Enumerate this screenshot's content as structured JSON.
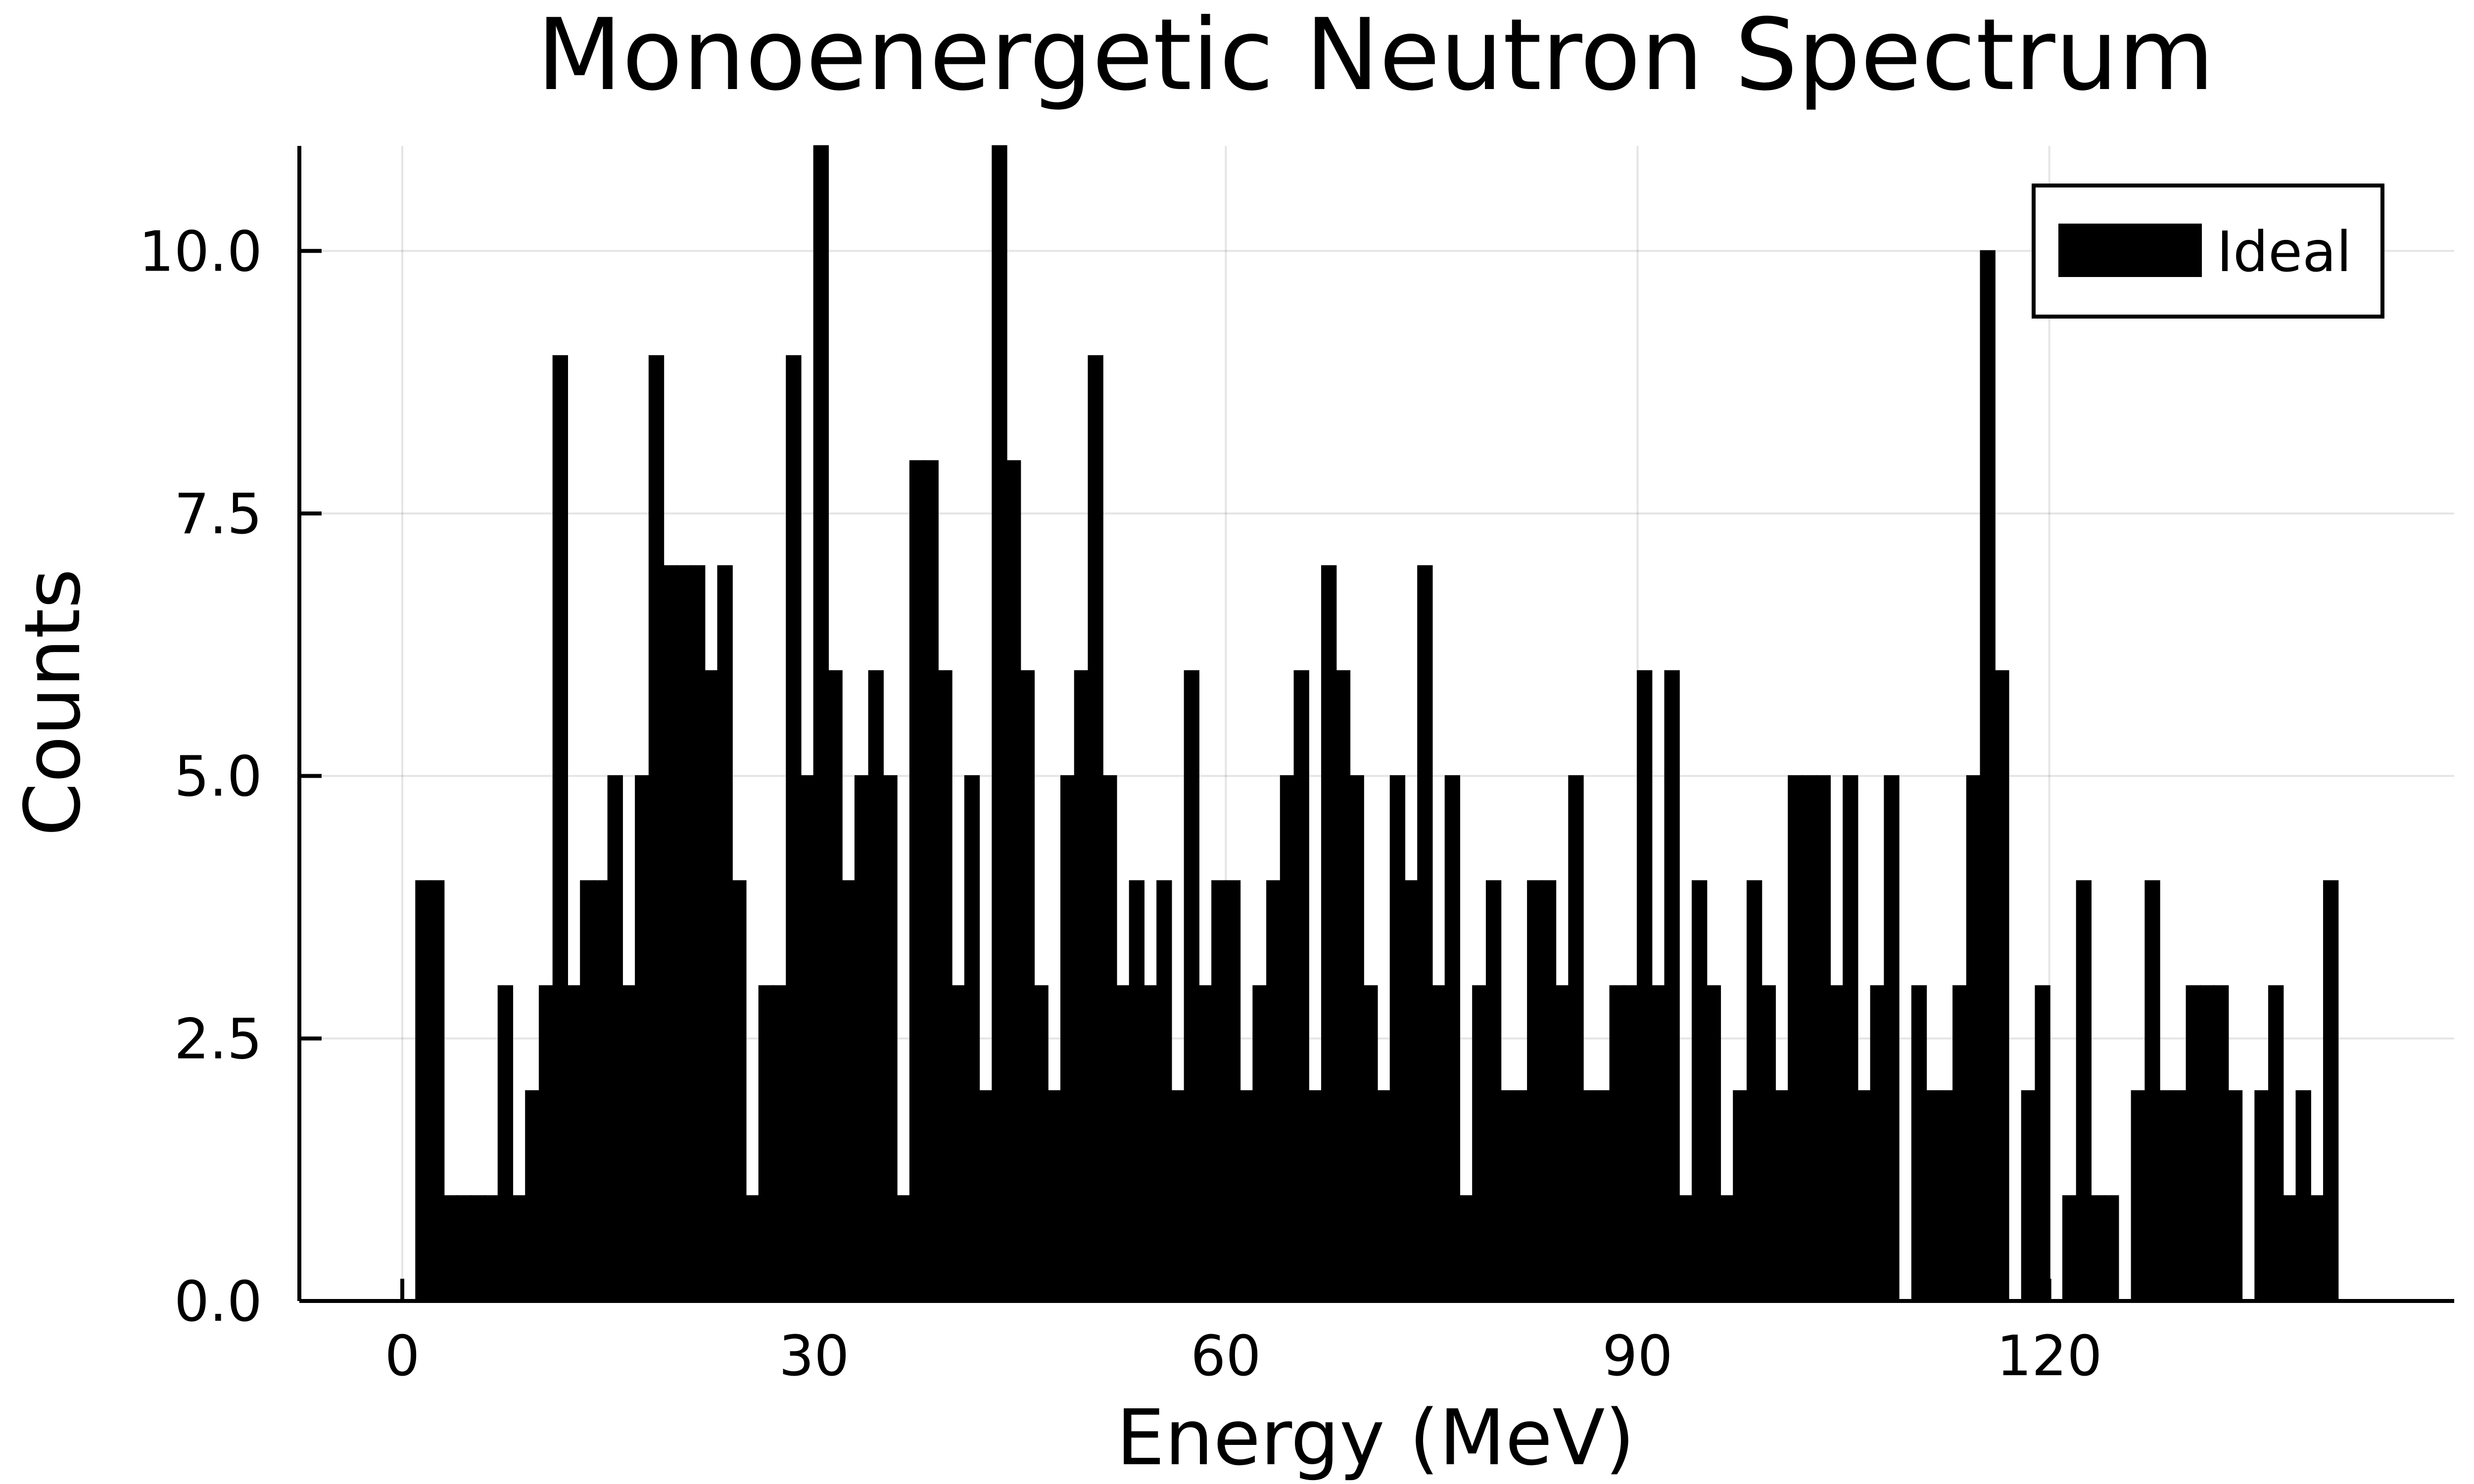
{
  "chart_data": {
    "type": "bar",
    "title": "Monoenergetic Neutron Spectrum",
    "xlabel": "Energy (MeV)",
    "ylabel": "Counts",
    "xlim": [
      -7.5,
      149.5
    ],
    "ylim": [
      0,
      11
    ],
    "x_ticks": [
      0,
      30,
      60,
      90,
      120
    ],
    "x_tick_labels": [
      "0",
      "30",
      "60",
      "90",
      "120"
    ],
    "y_ticks": [
      0,
      2.5,
      5,
      7.5,
      10
    ],
    "y_tick_labels": [
      "0.0",
      "2.5",
      "5.0",
      "7.5",
      "10.0"
    ],
    "grid": true,
    "legend": {
      "position": "top-right"
    },
    "bin_width": 1,
    "bin_start": 0,
    "series": [
      {
        "name": "Ideal",
        "color": "#000000",
        "values": [
          0,
          4,
          4,
          1,
          1,
          1,
          1,
          3,
          1,
          2,
          3,
          9,
          3,
          4,
          4,
          5,
          3,
          5,
          9,
          7,
          7,
          7,
          6,
          7,
          4,
          1,
          3,
          3,
          9,
          5,
          11,
          6,
          4,
          5,
          6,
          5,
          1,
          8,
          8,
          6,
          3,
          5,
          2,
          11,
          8,
          6,
          3,
          2,
          5,
          6,
          9,
          5,
          3,
          4,
          3,
          4,
          2,
          6,
          3,
          4,
          4,
          2,
          3,
          4,
          5,
          6,
          2,
          7,
          6,
          5,
          3,
          2,
          5,
          4,
          7,
          3,
          5,
          1,
          3,
          4,
          2,
          2,
          4,
          4,
          3,
          5,
          2,
          2,
          3,
          3,
          6,
          3,
          6,
          1,
          4,
          3,
          1,
          2,
          4,
          3,
          2,
          5,
          5,
          5,
          3,
          5,
          2,
          3,
          5,
          0,
          3,
          2,
          2,
          3,
          5,
          10,
          6,
          0,
          2,
          3,
          0,
          1,
          4,
          1,
          1,
          0,
          2,
          4,
          2,
          2,
          3,
          3,
          3,
          2,
          0,
          2,
          3,
          1,
          2,
          1,
          4
        ]
      }
    ]
  }
}
